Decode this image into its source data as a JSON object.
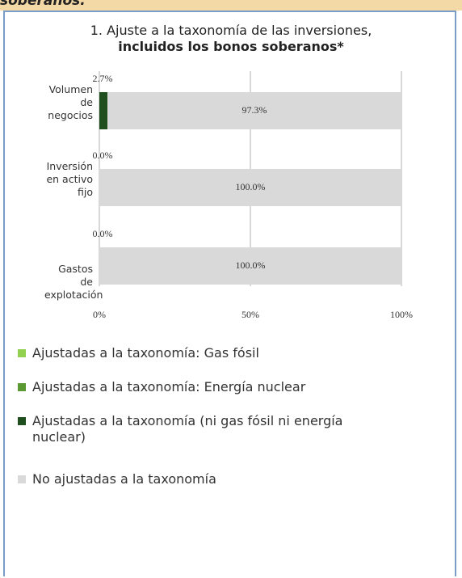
{
  "header_fragment": "soberanos.",
  "chart_data": {
    "type": "stacked-barh",
    "title": "1. Ajuste a la taxonomía de las inversiones,",
    "subtitle": "incluidos los bonos soberanos*",
    "categories": [
      "Volumen de negocios",
      "Inversión en activo fijo",
      "Gastos de explotación"
    ],
    "series": [
      {
        "name": "Ajustadas a la taxonomía: Gas fósil",
        "color": "#92d050",
        "values": [
          0,
          0,
          0
        ]
      },
      {
        "name": "Ajustadas a la taxonomía: Energía nuclear",
        "color": "#5b9a32",
        "values": [
          0,
          0,
          0
        ]
      },
      {
        "name": "Ajustadas a la taxonomía (ni gas fósil ni energía nuclear)",
        "color": "#1f4e1f",
        "values": [
          2.7,
          0,
          0
        ],
        "value_labels": [
          "2.7%",
          "0.0%",
          "0.0%"
        ]
      },
      {
        "name": "No ajustadas a la taxonomía",
        "color": "#d9d9d9",
        "values": [
          97.3,
          100,
          100
        ],
        "value_labels": [
          "97.3%",
          "100.0%",
          "100.0%"
        ]
      }
    ],
    "xlim": [
      0,
      100
    ],
    "xticks": [
      {
        "value": 0,
        "label": "0%"
      },
      {
        "value": 50,
        "label": "50%"
      },
      {
        "value": 100,
        "label": "100%"
      }
    ],
    "grid": true,
    "legend": "bottom"
  }
}
